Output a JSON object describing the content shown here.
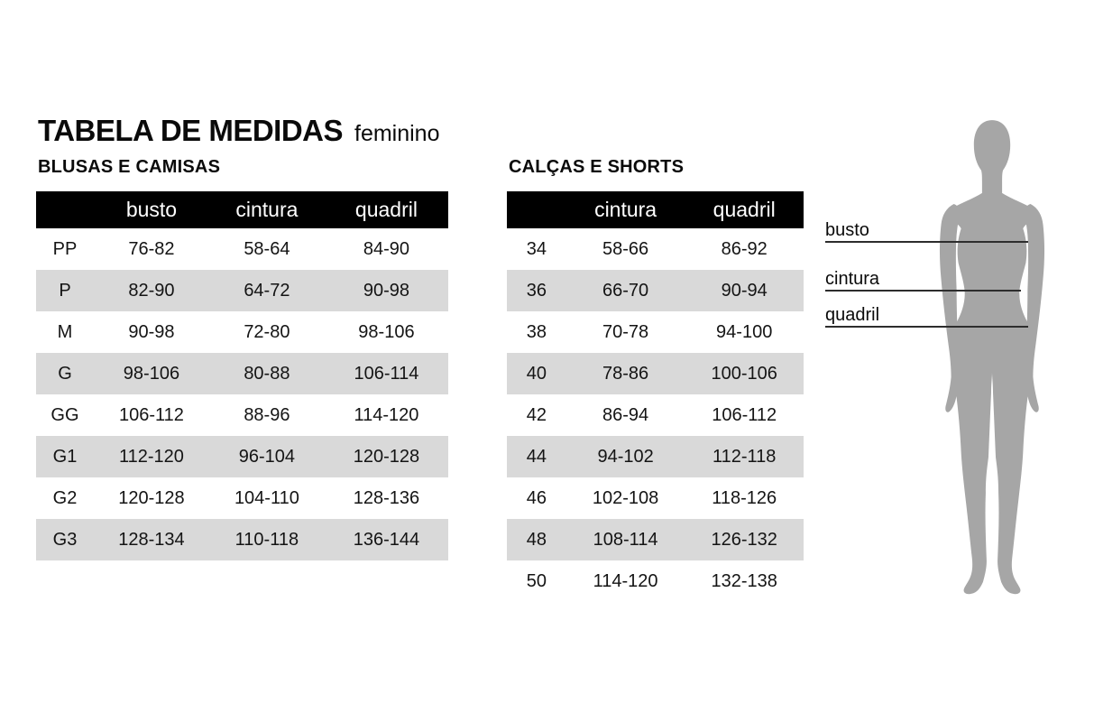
{
  "page": {
    "title": "TABELA DE MEDIDAS",
    "subtitle": "feminino"
  },
  "tables": [
    {
      "id": "blusas",
      "section_label": "BLUSAS E CAMISAS",
      "columns": [
        "",
        "busto",
        "cintura",
        "quadril"
      ],
      "fields": [
        "size",
        "busto",
        "cintura",
        "quadril"
      ],
      "rows": [
        {
          "size": "PP",
          "busto": "76-82",
          "cintura": "58-64",
          "quadril": "84-90"
        },
        {
          "size": "P",
          "busto": "82-90",
          "cintura": "64-72",
          "quadril": "90-98"
        },
        {
          "size": "M",
          "busto": "90-98",
          "cintura": "72-80",
          "quadril": "98-106"
        },
        {
          "size": "G",
          "busto": "98-106",
          "cintura": "80-88",
          "quadril": "106-114"
        },
        {
          "size": "GG",
          "busto": "106-112",
          "cintura": "88-96",
          "quadril": "114-120"
        },
        {
          "size": "G1",
          "busto": "112-120",
          "cintura": "96-104",
          "quadril": "120-128"
        },
        {
          "size": "G2",
          "busto": "120-128",
          "cintura": "104-110",
          "quadril": "128-136"
        },
        {
          "size": "G3",
          "busto": "128-134",
          "cintura": "110-118",
          "quadril": "136-144"
        }
      ]
    },
    {
      "id": "calcas",
      "section_label": "CALÇAS E SHORTS",
      "columns": [
        "",
        "cintura",
        "quadril"
      ],
      "fields": [
        "size",
        "cintura",
        "quadril"
      ],
      "rows": [
        {
          "size": "34",
          "cintura": "58-66",
          "quadril": "86-92"
        },
        {
          "size": "36",
          "cintura": "66-70",
          "quadril": "90-94"
        },
        {
          "size": "38",
          "cintura": "70-78",
          "quadril": "94-100"
        },
        {
          "size": "40",
          "cintura": "78-86",
          "quadril": "100-106"
        },
        {
          "size": "42",
          "cintura": "86-94",
          "quadril": "106-112"
        },
        {
          "size": "44",
          "cintura": "94-102",
          "quadril": "112-118"
        },
        {
          "size": "46",
          "cintura": "102-108",
          "quadril": "118-126"
        },
        {
          "size": "48",
          "cintura": "108-114",
          "quadril": "126-132"
        },
        {
          "size": "50",
          "cintura": "114-120",
          "quadril": "132-138"
        }
      ]
    }
  ],
  "diagram": {
    "silhouette": "female-body-front",
    "labels": [
      {
        "id": "busto",
        "text": "busto"
      },
      {
        "id": "cintura",
        "text": "cintura"
      },
      {
        "id": "quadril",
        "text": "quadril"
      }
    ]
  },
  "colors": {
    "header_bg": "#000000",
    "header_text": "#ffffff",
    "row_alt": "#d9d9d9",
    "silhouette": "#a6a6a6",
    "measure_line": "#2d2d2d"
  }
}
